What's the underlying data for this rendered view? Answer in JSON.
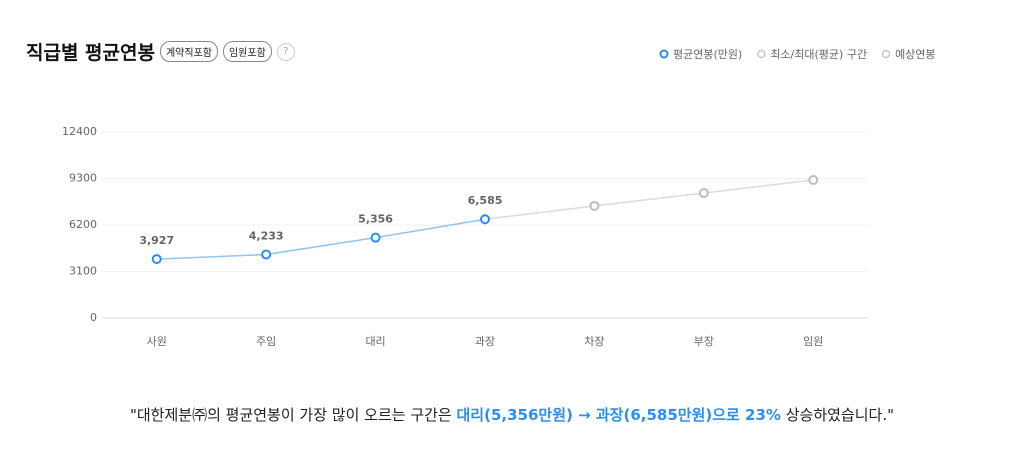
{
  "header": {
    "title": "직급별 평균연봉",
    "badges": [
      "계약직포함",
      "임원포함"
    ],
    "help": "?"
  },
  "chart_data": {
    "type": "line",
    "categories": [
      "사원",
      "주임",
      "대리",
      "과장",
      "차장",
      "부장",
      "임원"
    ],
    "series": [
      {
        "name": "평균연봉(만원)",
        "color": "#2b8ef0",
        "values": [
          3927,
          4233,
          5356,
          6585,
          null,
          null,
          null
        ],
        "value_labels": [
          "3,927",
          "4,233",
          "5,356",
          "6,585",
          null,
          null,
          null
        ]
      },
      {
        "name": "최소/최대(평균) 구간",
        "color": "#bdbdbd",
        "values": [
          null,
          null,
          null,
          null,
          null,
          null,
          null
        ]
      },
      {
        "name": "예상연봉",
        "color": "#bdbdbd",
        "values": [
          null,
          null,
          null,
          6585,
          7470,
          8330,
          9200
        ]
      }
    ],
    "ylim": [
      0,
      12400
    ],
    "yticks": [
      0,
      3100,
      6200,
      9300,
      12400
    ],
    "grid": true,
    "legend": "top-right"
  },
  "summary": {
    "before": "\"대한제분㈜의 평균연봉이 가장 많이 오르는 구간은 ",
    "highlight": "대리(5,356만원) → 과장(6,585만원)으로 23%",
    "after": " 상승하였습니다.\""
  }
}
